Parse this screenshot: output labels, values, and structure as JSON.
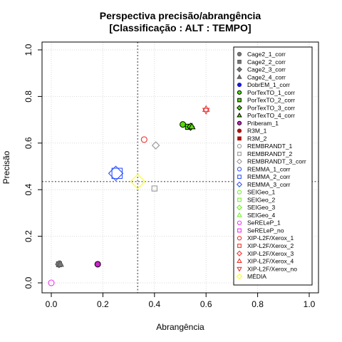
{
  "chart_data": {
    "type": "scatter",
    "title": [
      "Perspectiva precisão/abrangência",
      "[Classificação : ALT : TEMPO]"
    ],
    "xlabel": "Abrangência",
    "ylabel": "Precisão",
    "xlim": [
      0,
      1
    ],
    "ylim": [
      0,
      1
    ],
    "x_ticks": [
      "0.0",
      "0.2",
      "0.4",
      "0.6",
      "0.8",
      "1.0"
    ],
    "y_ticks": [
      "0.0",
      "0.2",
      "0.4",
      "0.6",
      "0.8",
      "1.0"
    ],
    "grid": true,
    "reference_lines": {
      "x": 0.335,
      "y": 0.435
    },
    "legend_position": "right, inside plot",
    "series": [
      {
        "name": "Cage2_1_corr",
        "shape": "circle",
        "color": "#555555",
        "fill": "#777777",
        "points": [
          [
            0.03,
            0.08
          ]
        ]
      },
      {
        "name": "Cage2_2_corr",
        "shape": "square",
        "color": "#555555",
        "fill": "#777777",
        "points": [
          [
            0.03,
            0.08
          ]
        ]
      },
      {
        "name": "Cage2_3_corr",
        "shape": "diamond",
        "color": "#555555",
        "fill": "#777777",
        "points": [
          [
            0.03,
            0.08
          ]
        ]
      },
      {
        "name": "Cage2_4_corr",
        "shape": "triangle",
        "color": "#555555",
        "fill": "#777777",
        "points": [
          [
            0.035,
            0.08
          ]
        ]
      },
      {
        "name": "DobrEM_1_corr",
        "shape": "circle",
        "color": "#1a1acc",
        "fill": "#1a1acc",
        "points": []
      },
      {
        "name": "PorTexTO_1_corr",
        "shape": "circle",
        "color": "#000000",
        "fill": "#55dd00",
        "points": [
          [
            0.51,
            0.68
          ]
        ]
      },
      {
        "name": "PorTexTO_2_corr",
        "shape": "square",
        "color": "#000000",
        "fill": "#55dd00",
        "points": [
          [
            0.53,
            0.67
          ]
        ]
      },
      {
        "name": "PorTexTO_3_corr",
        "shape": "diamond",
        "color": "#000000",
        "fill": "#55dd00",
        "points": [
          [
            0.54,
            0.67
          ]
        ]
      },
      {
        "name": "PorTexTO_4_corr",
        "shape": "triangle",
        "color": "#000000",
        "fill": "#55dd00",
        "points": [
          [
            0.545,
            0.67
          ]
        ]
      },
      {
        "name": "Priberam_1",
        "shape": "circle",
        "color": "#000000",
        "fill": "#cc22cc",
        "points": [
          [
            0.18,
            0.08
          ]
        ]
      },
      {
        "name": "R3M_1",
        "shape": "circle",
        "color": "#aa1111",
        "fill": "#aa1111",
        "points": []
      },
      {
        "name": "R3M_2",
        "shape": "square",
        "color": "#aa1111",
        "fill": "#aa1111",
        "points": []
      },
      {
        "name": "REMBRANDT_1",
        "shape": "circle-open",
        "color": "#999999",
        "fill": "none",
        "points": []
      },
      {
        "name": "REMBRANDT_2",
        "shape": "square-open",
        "color": "#999999",
        "fill": "none",
        "points": [
          [
            0.4,
            0.405
          ]
        ]
      },
      {
        "name": "REMBRANDT_3_corr",
        "shape": "diamond-open",
        "color": "#999999",
        "fill": "none",
        "points": [
          [
            0.405,
            0.59
          ]
        ]
      },
      {
        "name": "REMMA_1_corr",
        "shape": "circle-open",
        "color": "#3355ff",
        "fill": "none",
        "points": []
      },
      {
        "name": "REMMA_2_corr",
        "shape": "square-open",
        "color": "#3355ff",
        "fill": "none",
        "points": [
          [
            0.255,
            0.47
          ]
        ]
      },
      {
        "name": "REMMA_3_corr",
        "shape": "diamond-open",
        "color": "#3355ff",
        "fill": "none",
        "points": [
          [
            0.25,
            0.47
          ]
        ]
      },
      {
        "name": "SEIGeo_1",
        "shape": "circle-open",
        "color": "#77ee33",
        "fill": "none",
        "points": []
      },
      {
        "name": "SEIGeo_2",
        "shape": "square-open",
        "color": "#77ee33",
        "fill": "none",
        "points": []
      },
      {
        "name": "SEIGeo_3",
        "shape": "diamond-open",
        "color": "#77ee33",
        "fill": "none",
        "points": []
      },
      {
        "name": "SEIGeo_4",
        "shape": "triangle-open",
        "color": "#77ee33",
        "fill": "none",
        "points": []
      },
      {
        "name": "SeRELeP_1",
        "shape": "circle-open",
        "color": "#ee33ee",
        "fill": "none",
        "points": [
          [
            0.0,
            0.0
          ]
        ]
      },
      {
        "name": "SeRELeP_no",
        "shape": "square-open",
        "color": "#ee33ee",
        "fill": "none",
        "points": []
      },
      {
        "name": "XIP-L2F/Xerox_1",
        "shape": "circle-open",
        "color": "#ee3333",
        "fill": "none",
        "points": [
          [
            0.36,
            0.615
          ]
        ]
      },
      {
        "name": "XIP-L2F/Xerox_2",
        "shape": "square-open",
        "color": "#ee3333",
        "fill": "none",
        "points": []
      },
      {
        "name": "XIP-L2F/Xerox_3",
        "shape": "diamond-open",
        "color": "#ee3333",
        "fill": "none",
        "points": []
      },
      {
        "name": "XIP-L2F/Xerox_4",
        "shape": "triangle-open",
        "color": "#ee3333",
        "fill": "none",
        "points": [
          [
            0.6,
            0.745
          ]
        ]
      },
      {
        "name": "XIP-L2F/Xerox_no",
        "shape": "triangle-down-open",
        "color": "#ee3333",
        "fill": "none",
        "points": [
          [
            0.6,
            0.74
          ]
        ]
      },
      {
        "name": "MÉDIA",
        "shape": "diamond-open",
        "color": "#ffff00",
        "fill": "none",
        "points": [
          [
            0.335,
            0.435
          ]
        ]
      }
    ]
  }
}
